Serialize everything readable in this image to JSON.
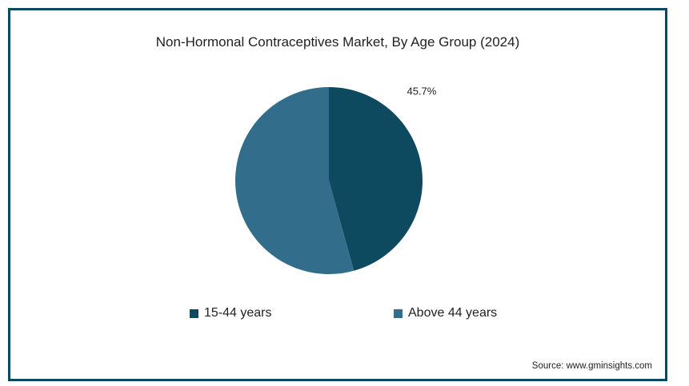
{
  "chart_data": {
    "type": "pie",
    "title": "Non-Hormonal Contraceptives Market, By Age Group (2024)",
    "slices": [
      {
        "name": "15-44 years",
        "value": 45.7,
        "label": "45.7%",
        "color": "#0d4a5f"
      },
      {
        "name": "Above 44 years",
        "value": 54.3,
        "label": "",
        "color": "#326d8c"
      }
    ],
    "legend_position": "bottom"
  },
  "source": "Source: www.gminsights.com"
}
